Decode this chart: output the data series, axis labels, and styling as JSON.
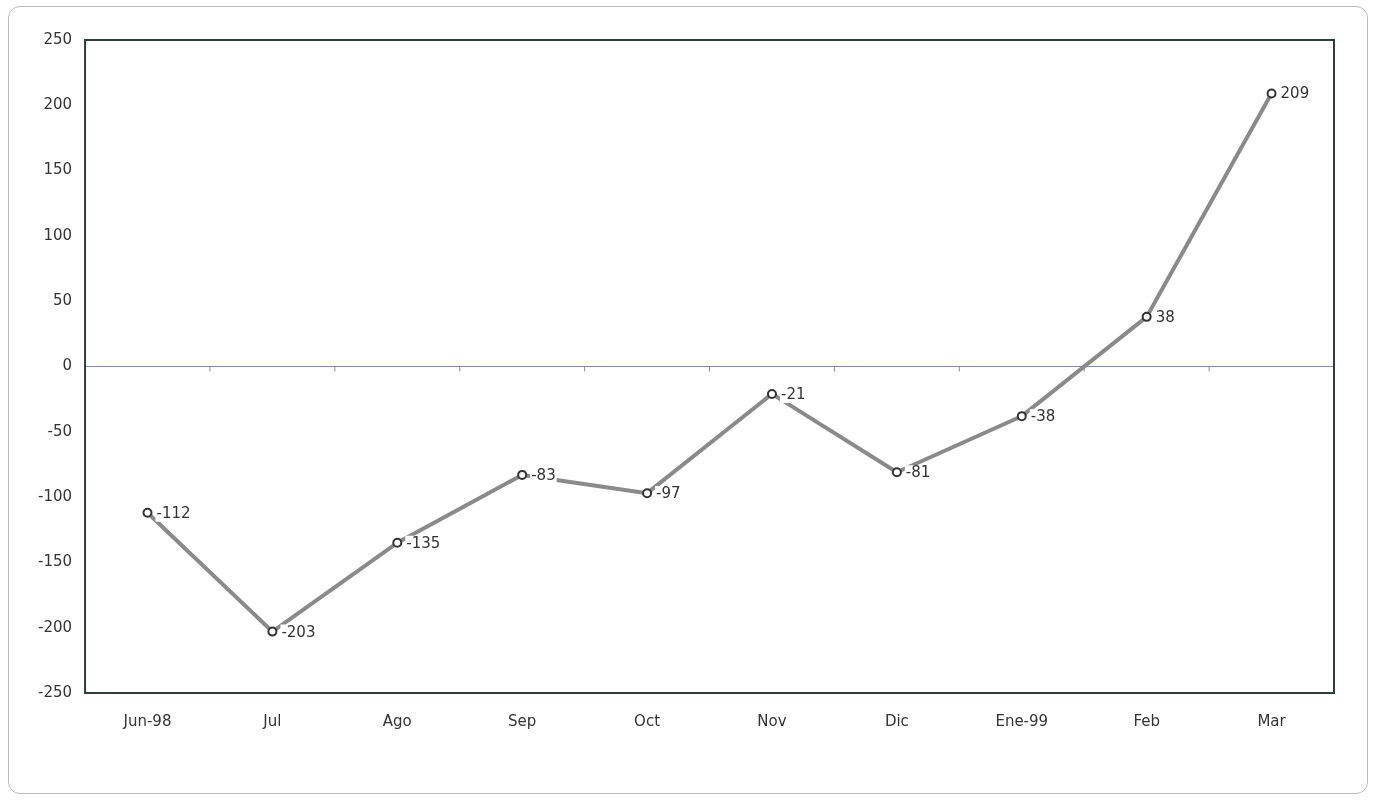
{
  "chart_data": {
    "type": "line",
    "categories": [
      "Jun-98",
      "Jul",
      "Ago",
      "Sep",
      "Oct",
      "Nov",
      "Dic",
      "Ene-99",
      "Feb",
      "Mar"
    ],
    "series": [
      {
        "color": "#8a8a8a",
        "values": [
          -112,
          -203,
          -135,
          -83,
          -97,
          -21,
          -81,
          -38,
          38,
          209
        ]
      }
    ],
    "ylim": [
      -250,
      250
    ],
    "yticks": [
      -250,
      -200,
      -150,
      -100,
      -50,
      0,
      50,
      100,
      150,
      200,
      250
    ],
    "ref_lines": [
      {
        "axis": "y",
        "value": 0,
        "color": "#8888aa"
      }
    ],
    "data_labels": true,
    "marker": "circle",
    "line_style": "solid",
    "grid": false,
    "legend": false
  }
}
